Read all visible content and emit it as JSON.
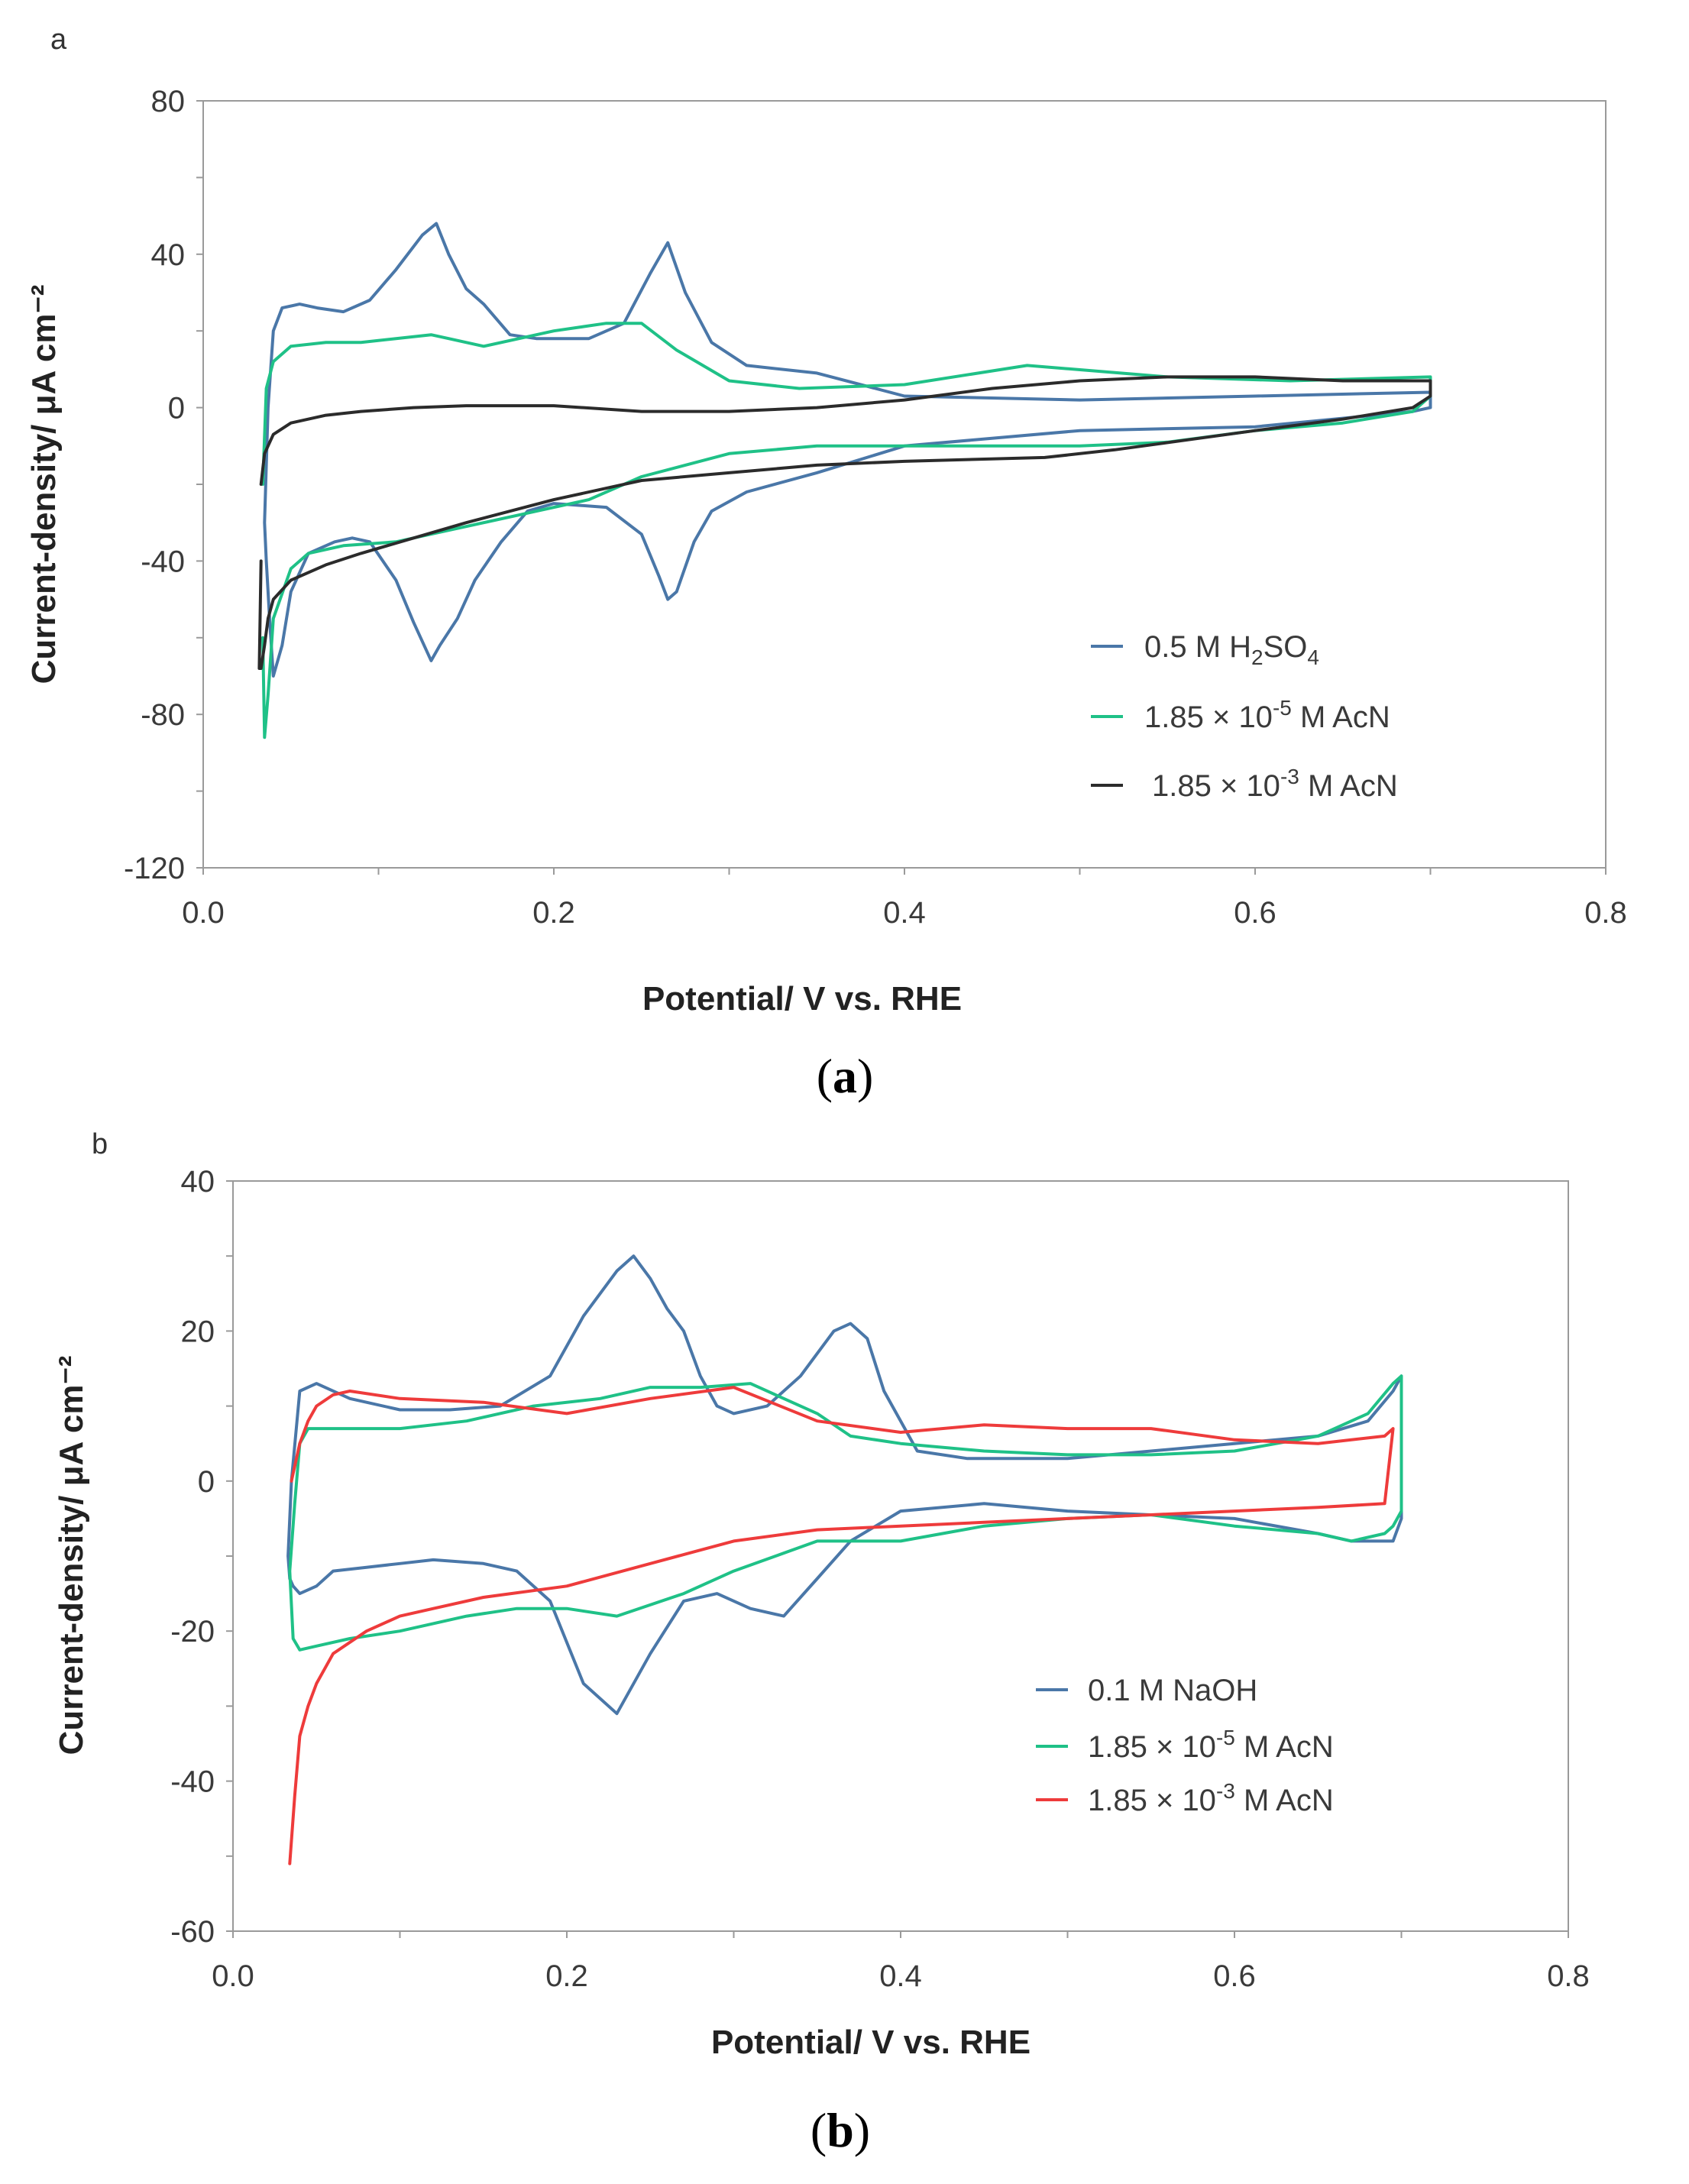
{
  "chart_data": [
    {
      "type": "line",
      "panel_label": "a",
      "caption": {
        "open": "(",
        "letter": "a",
        "close": ")"
      },
      "xlabel": "Potential/ V  vs. RHE",
      "ylabel": "Current-density/ μA cm⁻²",
      "xlim": [
        0.0,
        0.8
      ],
      "ylim": [
        -120,
        80
      ],
      "xticks": [
        0.0,
        0.2,
        0.4,
        0.6,
        0.8
      ],
      "xtick_labels": [
        "0.0",
        "0.2",
        "0.4",
        "0.6",
        "0.8"
      ],
      "yticks": [
        -120,
        -80,
        -40,
        0,
        40,
        80
      ],
      "ytick_labels": [
        "-120",
        "-80",
        "-40",
        "0",
        "40",
        "80"
      ],
      "grid": false,
      "legend_position": "lower-right",
      "series": [
        {
          "name": "0.5 M H₂SO₄",
          "legend": {
            "main": "0.5 M H",
            "sub1": "2",
            "mid": "SO",
            "sub2": "4"
          },
          "color": "#4a77a8",
          "x": [
            0.035,
            0.037,
            0.04,
            0.045,
            0.055,
            0.065,
            0.08,
            0.095,
            0.11,
            0.125,
            0.133,
            0.14,
            0.15,
            0.16,
            0.175,
            0.19,
            0.22,
            0.24,
            0.255,
            0.265,
            0.275,
            0.29,
            0.31,
            0.35,
            0.4,
            0.5,
            0.6,
            0.7,
            0.7,
            0.69,
            0.6,
            0.5,
            0.4,
            0.35,
            0.31,
            0.29,
            0.28,
            0.27,
            0.265,
            0.26,
            0.25,
            0.23,
            0.2,
            0.185,
            0.17,
            0.155,
            0.145,
            0.135,
            0.13,
            0.12,
            0.11,
            0.095,
            0.085,
            0.075,
            0.06,
            0.05,
            0.045,
            0.04,
            0.038,
            0.036,
            0.035
          ],
          "y": [
            -30,
            0,
            20,
            26,
            27,
            26,
            25,
            28,
            36,
            45,
            48,
            40,
            31,
            27,
            19,
            18,
            18,
            22,
            35,
            43,
            30,
            17,
            11,
            9,
            3,
            2,
            3,
            4,
            0,
            -1,
            -5,
            -6,
            -10,
            -17,
            -22,
            -27,
            -35,
            -48,
            -50,
            -44,
            -33,
            -26,
            -25,
            -27,
            -35,
            -45,
            -55,
            -62,
            -66,
            -56,
            -45,
            -35,
            -34,
            -35,
            -38,
            -48,
            -62,
            -70,
            -56,
            -40,
            -30
          ]
        },
        {
          "name": "1.85 × 10⁻⁵ M AcN",
          "legend": {
            "main": "1.85 × 10",
            "sup": "-5",
            "rest": " M AcN"
          },
          "color": "#1fc187",
          "x": [
            0.034,
            0.036,
            0.04,
            0.05,
            0.07,
            0.09,
            0.11,
            0.13,
            0.14,
            0.16,
            0.2,
            0.23,
            0.25,
            0.27,
            0.3,
            0.34,
            0.4,
            0.47,
            0.55,
            0.62,
            0.7,
            0.7,
            0.69,
            0.65,
            0.6,
            0.55,
            0.5,
            0.45,
            0.4,
            0.35,
            0.3,
            0.25,
            0.22,
            0.18,
            0.14,
            0.11,
            0.08,
            0.06,
            0.05,
            0.04,
            0.037,
            0.035,
            0.034
          ],
          "y": [
            -20,
            5,
            12,
            16,
            17,
            17,
            18,
            19,
            18,
            16,
            20,
            22,
            22,
            15,
            7,
            5,
            6,
            11,
            8,
            7,
            8,
            3,
            -1,
            -4,
            -6,
            -9,
            -10,
            -10,
            -10,
            -10,
            -12,
            -18,
            -24,
            -28,
            -32,
            -35,
            -36,
            -38,
            -42,
            -55,
            -75,
            -86,
            -60
          ]
        },
        {
          "name": "1.85 × 10⁻³ M AcN",
          "legend": {
            "main": "1.85 × 10",
            "sup": "-3",
            "rest": " M AcN"
          },
          "color": "#2b2b2b",
          "x": [
            0.033,
            0.035,
            0.04,
            0.05,
            0.07,
            0.09,
            0.12,
            0.15,
            0.2,
            0.25,
            0.3,
            0.35,
            0.4,
            0.45,
            0.5,
            0.55,
            0.6,
            0.65,
            0.7,
            0.7,
            0.69,
            0.65,
            0.6,
            0.52,
            0.48,
            0.4,
            0.35,
            0.3,
            0.25,
            0.2,
            0.15,
            0.12,
            0.09,
            0.07,
            0.05,
            0.04,
            0.037,
            0.035,
            0.033,
            0.032,
            0.033
          ],
          "y": [
            -20,
            -12,
            -7,
            -4,
            -2,
            -1,
            0,
            0.5,
            0.5,
            -1,
            -1,
            0,
            2,
            5,
            7,
            8,
            8,
            7,
            7,
            3,
            0,
            -3,
            -6,
            -11,
            -13,
            -14,
            -15,
            -17,
            -19,
            -24,
            -30,
            -34,
            -38,
            -41,
            -45,
            -50,
            -55,
            -62,
            -68,
            -68,
            -40
          ]
        }
      ]
    },
    {
      "type": "line",
      "panel_label": "b",
      "caption": {
        "open": "(",
        "letter": "b",
        "close": ")"
      },
      "xlabel": "Potential/ V  vs. RHE",
      "ylabel": "Current-density/ μA cm⁻²",
      "xlim": [
        0.0,
        0.8
      ],
      "ylim": [
        -60,
        40
      ],
      "xticks": [
        0.0,
        0.2,
        0.4,
        0.6,
        0.8
      ],
      "xtick_labels": [
        "0.0",
        "0.2",
        "0.4",
        "0.6",
        "0.8"
      ],
      "yticks": [
        -60,
        -40,
        -20,
        0,
        20,
        40
      ],
      "ytick_labels": [
        "-60",
        "-40",
        "-20",
        "0",
        "20",
        "40"
      ],
      "grid": false,
      "legend_position": "lower-right",
      "series": [
        {
          "name": "0.1 M NaOH",
          "legend": {
            "main": "0.1 M NaOH"
          },
          "color": "#4a77a8",
          "x": [
            0.033,
            0.035,
            0.04,
            0.05,
            0.07,
            0.1,
            0.13,
            0.16,
            0.19,
            0.21,
            0.23,
            0.24,
            0.25,
            0.26,
            0.27,
            0.28,
            0.29,
            0.3,
            0.32,
            0.34,
            0.36,
            0.37,
            0.38,
            0.39,
            0.41,
            0.44,
            0.5,
            0.6,
            0.65,
            0.68,
            0.695,
            0.7,
            0.7,
            0.695,
            0.69,
            0.67,
            0.65,
            0.6,
            0.5,
            0.45,
            0.4,
            0.37,
            0.35,
            0.33,
            0.31,
            0.29,
            0.27,
            0.25,
            0.23,
            0.21,
            0.19,
            0.17,
            0.15,
            0.12,
            0.1,
            0.08,
            0.06,
            0.05,
            0.04,
            0.036,
            0.034,
            0.033
          ],
          "y": [
            -10,
            0,
            12,
            13,
            11,
            9.5,
            9.5,
            10,
            14,
            22,
            28,
            30,
            27,
            23,
            20,
            14,
            10,
            9,
            10,
            14,
            20,
            21,
            19,
            12,
            4,
            3,
            3,
            5,
            6,
            8,
            12,
            14,
            -5,
            -8,
            -8,
            -8,
            -7,
            -5,
            -4,
            -3,
            -4,
            -8,
            -13,
            -18,
            -17,
            -15,
            -16,
            -23,
            -31,
            -27,
            -16,
            -12,
            -11,
            -10.5,
            -11,
            -11.5,
            -12,
            -14,
            -15,
            -14,
            -13,
            -10
          ]
        },
        {
          "name": "1.85 × 10⁻⁵ M AcN",
          "legend": {
            "main": "1.85 × 10",
            "sup": "-5",
            "rest": " M AcN"
          },
          "color": "#1fc187",
          "x": [
            0.034,
            0.037,
            0.04,
            0.045,
            0.06,
            0.1,
            0.14,
            0.18,
            0.22,
            0.25,
            0.28,
            0.31,
            0.33,
            0.35,
            0.37,
            0.4,
            0.45,
            0.5,
            0.55,
            0.6,
            0.65,
            0.68,
            0.695,
            0.7,
            0.7,
            0.695,
            0.69,
            0.67,
            0.65,
            0.6,
            0.55,
            0.5,
            0.45,
            0.4,
            0.35,
            0.3,
            0.27,
            0.23,
            0.2,
            0.17,
            0.14,
            0.1,
            0.07,
            0.05,
            0.04,
            0.036,
            0.034
          ],
          "y": [
            -12,
            -3,
            5,
            7,
            7,
            7,
            8,
            10,
            11,
            12.5,
            12.5,
            13,
            11,
            9,
            6,
            5,
            4,
            3.5,
            3.5,
            4,
            6,
            9,
            13,
            14,
            -4,
            -6,
            -7,
            -8,
            -7,
            -6,
            -4.5,
            -5,
            -6,
            -8,
            -8,
            -12,
            -15,
            -18,
            -17,
            -17,
            -18,
            -20,
            -21,
            -22,
            -22.5,
            -21,
            -12
          ]
        },
        {
          "name": "1.85 × 10⁻³ M AcN",
          "legend": {
            "main": "1.85 × 10",
            "sup": "-3",
            "rest": " M AcN"
          },
          "color": "#ee3b3b",
          "x": [
            0.035,
            0.04,
            0.045,
            0.05,
            0.06,
            0.07,
            0.1,
            0.15,
            0.2,
            0.25,
            0.3,
            0.35,
            0.4,
            0.45,
            0.5,
            0.55,
            0.6,
            0.65,
            0.69,
            0.695,
            0.69,
            0.65,
            0.6,
            0.55,
            0.5,
            0.45,
            0.4,
            0.35,
            0.3,
            0.25,
            0.2,
            0.15,
            0.12,
            0.1,
            0.08,
            0.06,
            0.05,
            0.045,
            0.04,
            0.037,
            0.034
          ],
          "y": [
            0,
            5,
            8,
            10,
            11.5,
            12,
            11,
            10.5,
            9,
            11,
            12.5,
            8,
            6.5,
            7.5,
            7,
            7,
            5.5,
            5,
            6,
            7,
            -3,
            -3.5,
            -4,
            -4.5,
            -5,
            -5.5,
            -6,
            -6.5,
            -8,
            -11,
            -14,
            -15.5,
            -17,
            -18,
            -20,
            -23,
            -27,
            -30,
            -34,
            -42,
            -51
          ]
        }
      ]
    }
  ]
}
